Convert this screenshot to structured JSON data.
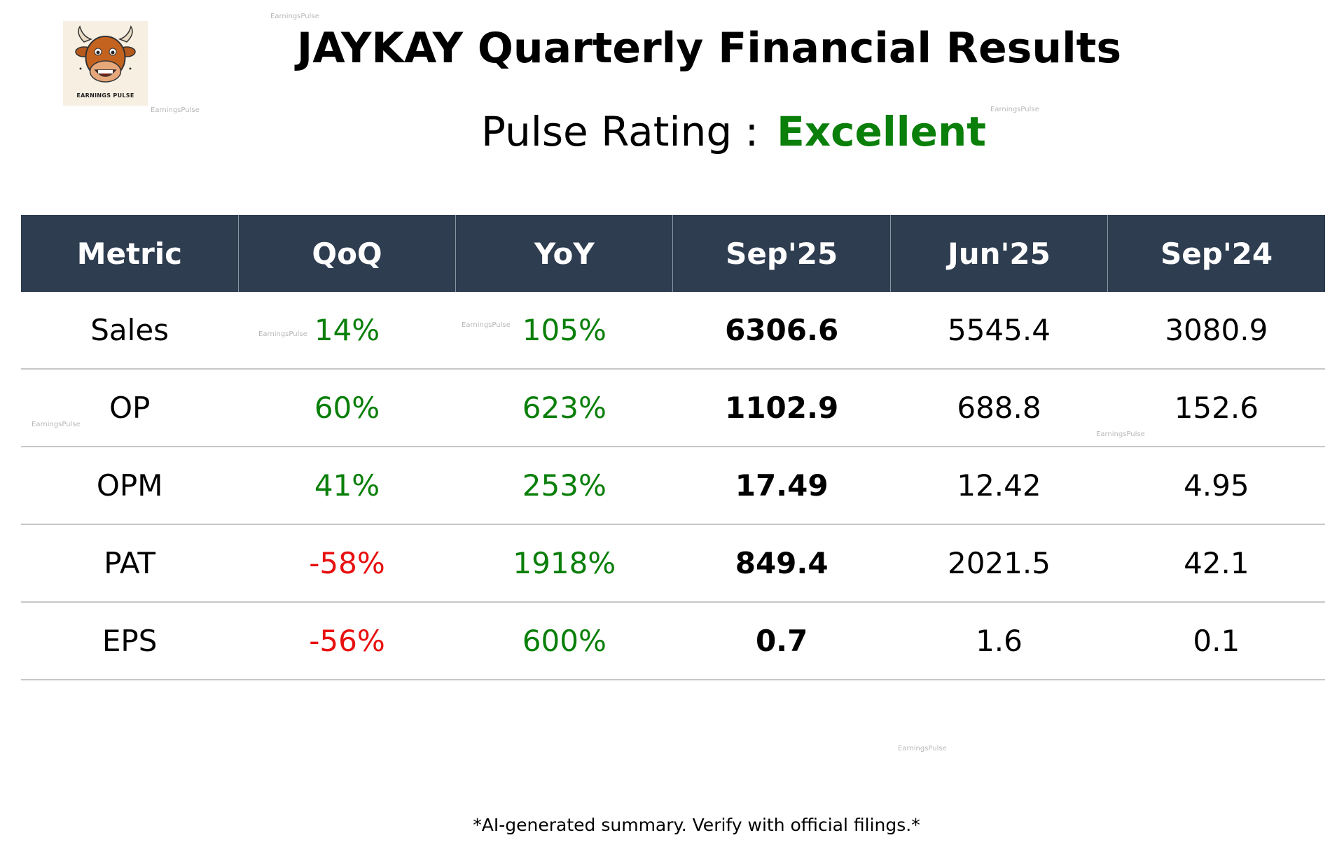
{
  "header": {
    "title": "JAYKAY Quarterly Financial Results",
    "rating_label": "Pulse Rating :",
    "rating_value": "Excellent",
    "logo_text": "EARNINGS PULSE"
  },
  "colors": {
    "header_bg": "#2e3d50",
    "positive": "#0a7f0a",
    "negative": "#e81010"
  },
  "watermark": "EarningsPulse",
  "table": {
    "columns": [
      "Metric",
      "QoQ",
      "YoY",
      "Sep'25",
      "Jun'25",
      "Sep'24"
    ],
    "rows": [
      {
        "metric": "Sales",
        "qoq": "14%",
        "yoy": "105%",
        "sep25": "6306.6",
        "jun25": "5545.4",
        "sep24": "3080.9"
      },
      {
        "metric": "OP",
        "qoq": "60%",
        "yoy": "623%",
        "sep25": "1102.9",
        "jun25": "688.8",
        "sep24": "152.6"
      },
      {
        "metric": "OPM",
        "qoq": "41%",
        "yoy": "253%",
        "sep25": "17.49",
        "jun25": "12.42",
        "sep24": "4.95"
      },
      {
        "metric": "PAT",
        "qoq": "-58%",
        "yoy": "1918%",
        "sep25": "849.4",
        "jun25": "2021.5",
        "sep24": "42.1"
      },
      {
        "metric": "EPS",
        "qoq": "-56%",
        "yoy": "600%",
        "sep25": "0.7",
        "jun25": "1.6",
        "sep24": "0.1"
      }
    ]
  },
  "footer": "*AI-generated summary. Verify with official filings.*"
}
